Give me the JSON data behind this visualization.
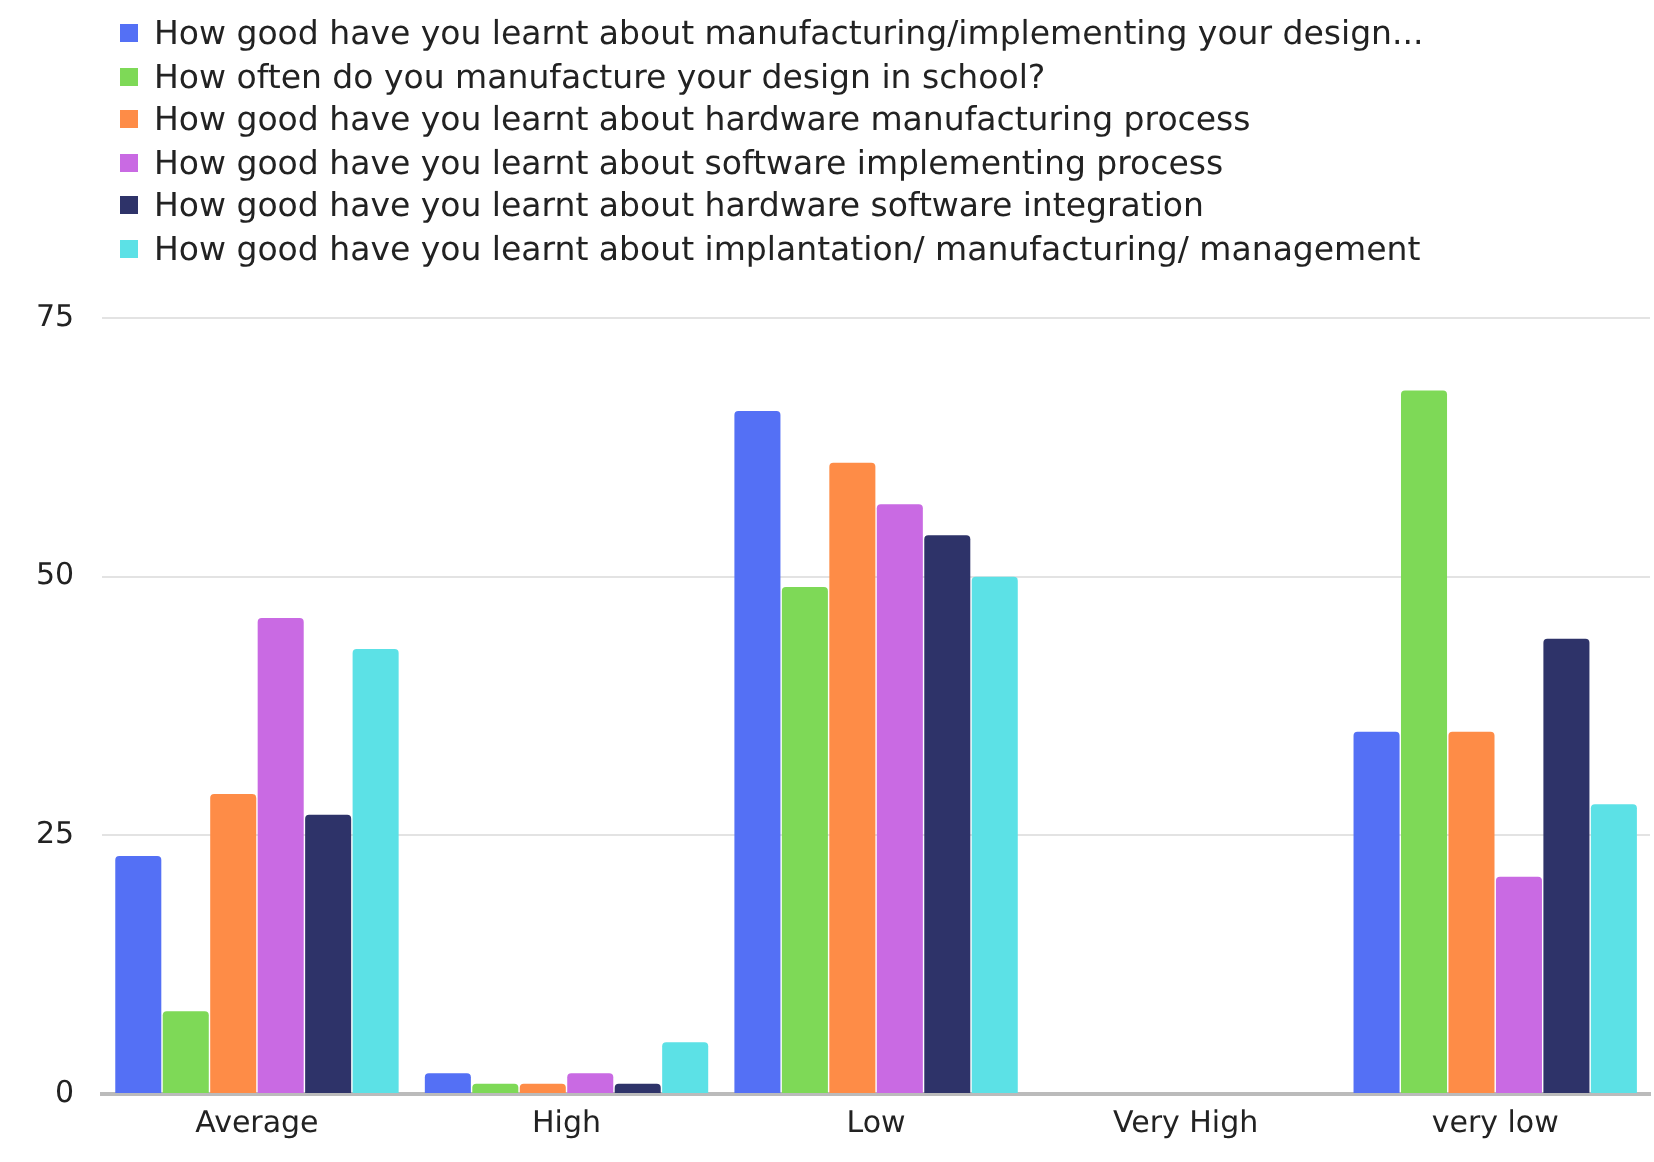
{
  "chart_data": {
    "type": "bar",
    "categories": [
      "Average",
      "High",
      "Low",
      "Very High",
      "very low"
    ],
    "series": [
      {
        "name": "How good have you learnt about manufacturing/implementing your design...",
        "color": "#5470f5",
        "values": [
          23,
          2,
          66,
          0,
          35
        ]
      },
      {
        "name": "How often do you manufacture your design in school?",
        "color": "#7ed957",
        "values": [
          8,
          1,
          49,
          0,
          68
        ]
      },
      {
        "name": "How good have you learnt about hardware manufacturing process",
        "color": "#fe8c47",
        "values": [
          29,
          1,
          61,
          0,
          35
        ]
      },
      {
        "name": "How good have you learnt about software implementing process",
        "color": "#c96ae3",
        "values": [
          46,
          2,
          57,
          0,
          21
        ]
      },
      {
        "name": "How good have you learnt about hardware software integration",
        "color": "#2e3369",
        "values": [
          27,
          1,
          54,
          0,
          44
        ]
      },
      {
        "name": "How good have you learnt about implantation/ manufacturing/ management",
        "color": "#5ce1e6",
        "values": [
          43,
          5,
          50,
          0,
          28
        ]
      }
    ],
    "ylim": [
      0,
      75
    ],
    "yticks": [
      0,
      25,
      50,
      75
    ],
    "grid": "y",
    "legend": "top"
  }
}
